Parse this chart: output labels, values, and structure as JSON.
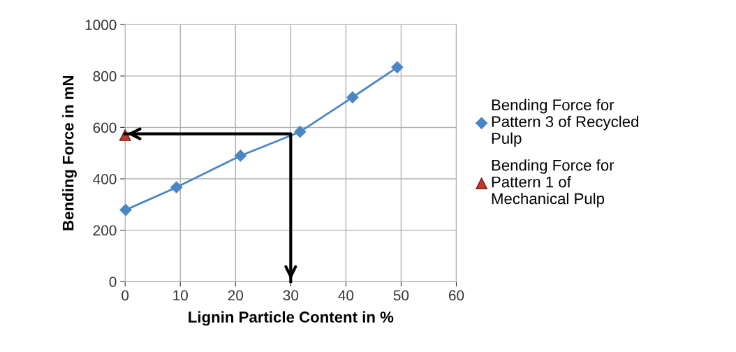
{
  "chart_data": {
    "type": "line",
    "xlabel": "Lignin Particle Content in %",
    "ylabel": "Bending Force in mN",
    "series": [
      {
        "name": "Bending Force for Pattern 3 of Recycled Pulp",
        "color": "#4a86c5",
        "marker": "diamond",
        "x": [
          0.1,
          9.3,
          20.9,
          31.7,
          41.2,
          49.3
        ],
        "values": [
          279,
          367,
          490,
          583,
          717,
          834
        ]
      },
      {
        "name": "Bending Force for Pattern 1 of Mechanical Pulp",
        "type": "scatter",
        "color": "#c0392b",
        "marker": "triangle",
        "x": [
          0
        ],
        "values": [
          570
        ]
      },
      {
        "type": "line",
        "color": "#000000",
        "marker": "none",
        "x": [
          0,
          30,
          30
        ],
        "values": [
          575,
          575,
          0
        ]
      }
    ],
    "xlim": [
      0,
      60
    ],
    "xticks": [
      0,
      10,
      20,
      30,
      40,
      50,
      60
    ],
    "ylim": [
      0,
      1000
    ],
    "yticks": [
      0,
      200,
      400,
      600,
      800,
      1000
    ],
    "grid": true,
    "legend": "right"
  }
}
